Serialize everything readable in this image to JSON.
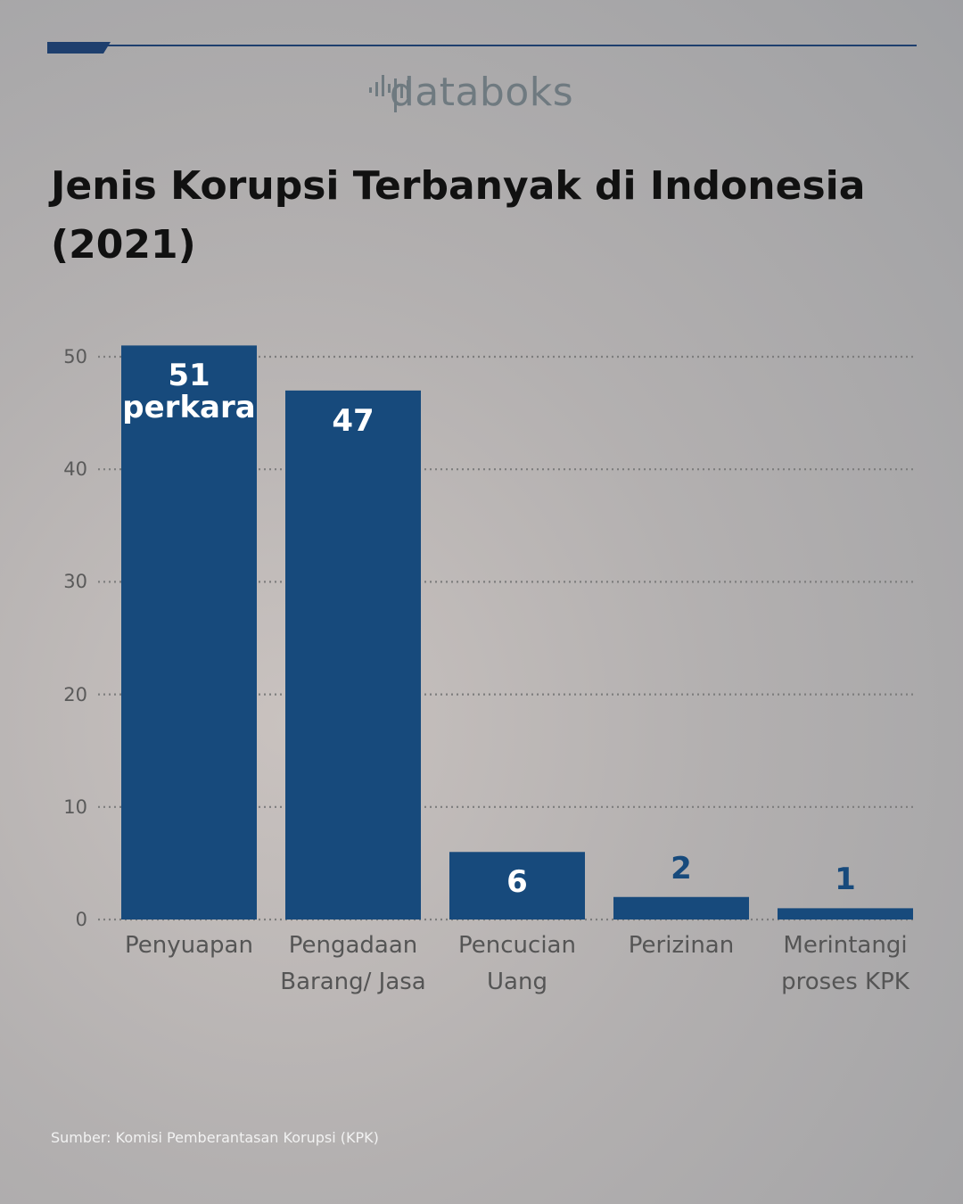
{
  "chart_data": {
    "type": "bar",
    "brand": "databoks",
    "title": "Jenis Korupsi Terbanyak di Indonesia (2021)",
    "categories": [
      "Penyuapan",
      "Pengadaan Barang/ Jasa",
      "Pencucian Uang",
      "Perizinan",
      "Merintangi proses KPK"
    ],
    "values": [
      51,
      47,
      6,
      2,
      1
    ],
    "value_labels": [
      "51 perkara",
      "47",
      "6",
      "2",
      "1"
    ],
    "color": "#174a7c",
    "ylim": [
      0,
      52
    ],
    "yticks": [
      0,
      10,
      20,
      30,
      40,
      50
    ],
    "grid": true,
    "source": "Sumber: Komisi Pemberantasan Korupsi (KPK)"
  }
}
